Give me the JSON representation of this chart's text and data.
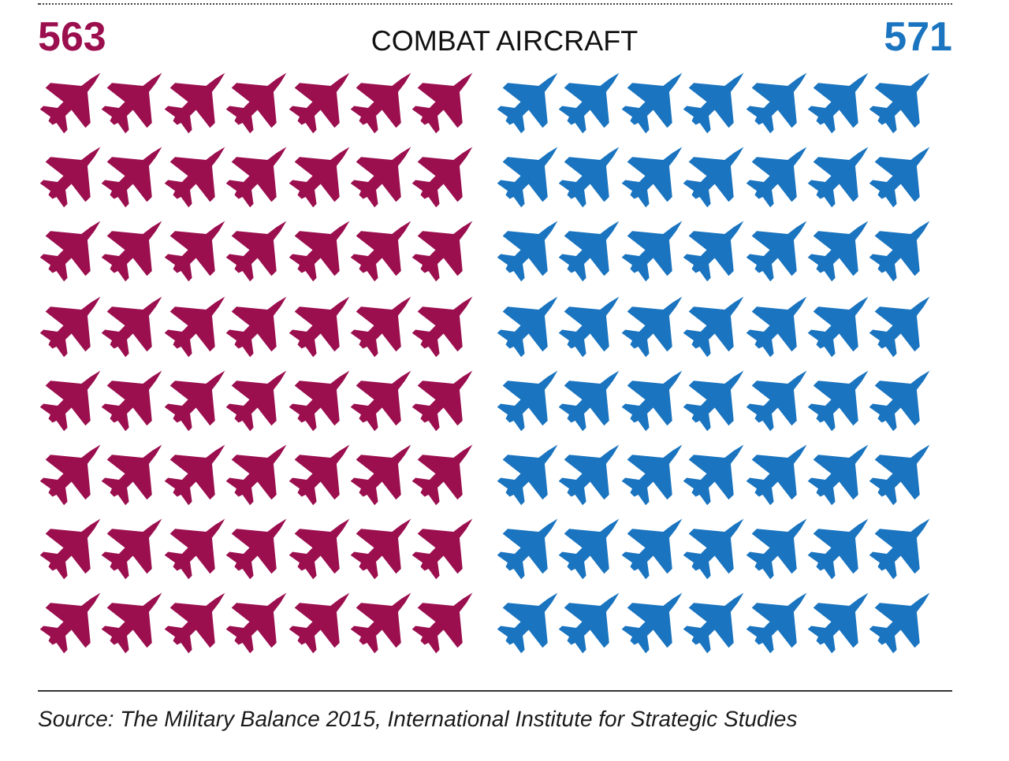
{
  "chart_data": {
    "type": "other",
    "title": "COMBAT AIRCRAFT",
    "categories": [
      null,
      null
    ],
    "values": [
      563,
      571
    ],
    "colors": [
      "#9b0f4f",
      "#1a74bf"
    ],
    "data_labels": true,
    "annotations": [
      "Source: The Military Balance 2015, International Institute for Strategic Studies"
    ]
  }
}
